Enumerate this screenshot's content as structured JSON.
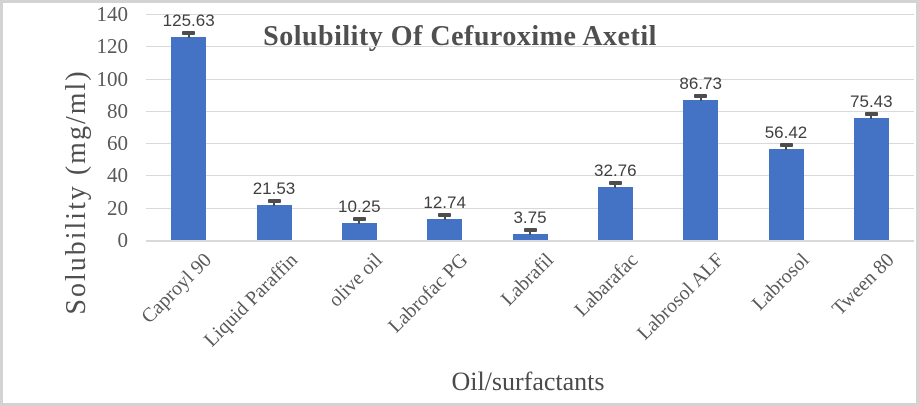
{
  "chart_data": {
    "type": "bar",
    "title": "Solubility Of Cefuroxime Axetil",
    "xlabel": "Oil/surfactants",
    "ylabel": "Solubility (mg/ml)",
    "categories": [
      "Caproyl 90",
      "Liquid Paraffin",
      "olive oil",
      "Labrofac PG",
      "Labrafil",
      "Labarafac",
      "Labrosol ALF",
      "Labrosol",
      "Tween 80"
    ],
    "values": [
      125.63,
      21.53,
      10.25,
      12.74,
      3.75,
      32.76,
      86.73,
      56.42,
      75.43
    ],
    "value_labels": [
      "125.63",
      "21.53",
      "10.25",
      "12.74",
      "3.75",
      "32.76",
      "86.73",
      "56.42",
      "75.43"
    ],
    "ylim": [
      0,
      140
    ],
    "yticks": [
      0,
      20,
      40,
      60,
      80,
      100,
      120,
      140
    ],
    "grid": true,
    "legend": "none",
    "error_bars": true,
    "bar_color": "#4472C4",
    "gridline_color": "#D9D9D9",
    "error_bar_color": "#4D4D4D"
  }
}
